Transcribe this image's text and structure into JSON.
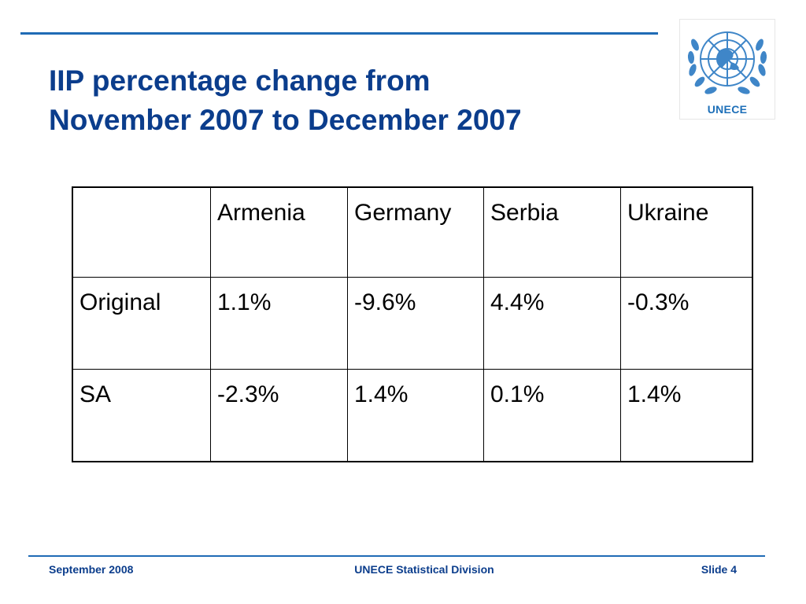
{
  "slide": {
    "title_line1": "IIP percentage change from",
    "title_line2": "November 2007 to December 2007",
    "logo_text": "UNECE"
  },
  "table": {
    "header": [
      "",
      "Armenia",
      "Germany",
      "Serbia",
      "Ukraine"
    ],
    "rows": [
      {
        "label": "Original",
        "values": [
          "1.1%",
          "-9.6%",
          "4.4%",
          "-0.3%"
        ]
      },
      {
        "label": "SA",
        "values": [
          "-2.3%",
          "1.4%",
          "0.1%",
          "1.4%"
        ]
      }
    ]
  },
  "footer": {
    "left": "September 2008",
    "center": "UNECE Statistical Division",
    "right": "Slide 4"
  },
  "colors": {
    "accent": "#1f6bb5",
    "title": "#0b3d8c",
    "logo": "#3f86c8"
  }
}
